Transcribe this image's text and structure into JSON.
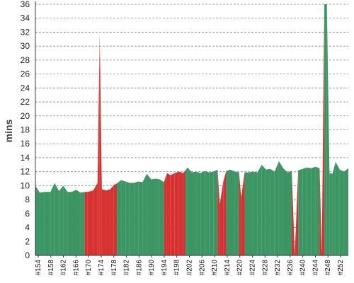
{
  "chart_data": {
    "type": "area",
    "ylabel": "mins",
    "ylim": [
      0,
      36
    ],
    "yticks": [
      0,
      2,
      4,
      6,
      8,
      10,
      12,
      14,
      16,
      18,
      20,
      22,
      24,
      26,
      28,
      30,
      32,
      34,
      36
    ],
    "xticks": [
      "#154",
      "#158",
      "#162",
      "#166",
      "#170",
      "#174",
      "#178",
      "#182",
      "#186",
      "#190",
      "#194",
      "#198",
      "#202",
      "#206",
      "#210",
      "#214",
      "#220",
      "#224",
      "#228",
      "#232",
      "#236",
      "#240",
      "#244",
      "#248",
      "#252"
    ],
    "grid": "horizontal-dashed",
    "colors": {
      "pass": "#3b9664",
      "fail": "#d63232",
      "grid": "#888888",
      "axis": "#333333"
    },
    "points": [
      {
        "x": 154.0,
        "y": 10.0
      },
      {
        "x": 155.0,
        "y": 9.0
      },
      {
        "x": 156.0,
        "y": 9.1
      },
      {
        "x": 157.5,
        "y": 9.1
      },
      {
        "x": 158.5,
        "y": 10.4
      },
      {
        "x": 159.5,
        "y": 9.2
      },
      {
        "x": 160.5,
        "y": 10.0
      },
      {
        "x": 161.5,
        "y": 9.1
      },
      {
        "x": 162.5,
        "y": 9.1
      },
      {
        "x": 163.5,
        "y": 9.4
      },
      {
        "x": 164.5,
        "y": 9.0
      },
      {
        "x": 165.5,
        "y": 9.1
      },
      {
        "x": 166.2,
        "y": 9.1,
        "s": "fail"
      },
      {
        "x": 167.5,
        "y": 9.3,
        "s": "fail"
      },
      {
        "x": 168.5,
        "y": 10.4,
        "s": "fail"
      },
      {
        "x": 169.0,
        "y": 31.8,
        "s": "fail"
      },
      {
        "x": 169.5,
        "y": 9.5,
        "s": "fail"
      },
      {
        "x": 170.5,
        "y": 9.3,
        "s": "fail"
      },
      {
        "x": 171.5,
        "y": 9.5,
        "s": "fail"
      },
      {
        "x": 172.3,
        "y": 10.1,
        "s": "fail"
      },
      {
        "x": 173.0,
        "y": 10.3
      },
      {
        "x": 174.0,
        "y": 10.8
      },
      {
        "x": 175.0,
        "y": 10.6
      },
      {
        "x": 176.0,
        "y": 10.4
      },
      {
        "x": 177.0,
        "y": 10.4
      },
      {
        "x": 178.0,
        "y": 10.6
      },
      {
        "x": 179.0,
        "y": 10.5
      },
      {
        "x": 180.0,
        "y": 11.7
      },
      {
        "x": 181.0,
        "y": 10.9
      },
      {
        "x": 182.0,
        "y": 11.0
      },
      {
        "x": 183.0,
        "y": 10.9
      },
      {
        "x": 184.0,
        "y": 10.5
      },
      {
        "x": 184.7,
        "y": 11.8,
        "s": "fail"
      },
      {
        "x": 185.5,
        "y": 11.5,
        "s": "fail"
      },
      {
        "x": 186.5,
        "y": 11.8,
        "s": "fail"
      },
      {
        "x": 187.5,
        "y": 12.0,
        "s": "fail"
      },
      {
        "x": 188.5,
        "y": 11.8,
        "s": "fail"
      },
      {
        "x": 189.0,
        "y": 12.2
      },
      {
        "x": 189.5,
        "y": 12.6
      },
      {
        "x": 190.5,
        "y": 11.9
      },
      {
        "x": 191.5,
        "y": 12.0
      },
      {
        "x": 192.5,
        "y": 11.8
      },
      {
        "x": 193.5,
        "y": 12.1
      },
      {
        "x": 194.5,
        "y": 11.9
      },
      {
        "x": 195.5,
        "y": 12.0
      },
      {
        "x": 196.5,
        "y": 12.3
      },
      {
        "x": 197.0,
        "y": 7.3,
        "s": "fail"
      },
      {
        "x": 197.8,
        "y": 10.5,
        "s": "fail"
      },
      {
        "x": 198.5,
        "y": 12.1
      },
      {
        "x": 199.5,
        "y": 12.3
      },
      {
        "x": 200.5,
        "y": 12.0
      },
      {
        "x": 201.5,
        "y": 11.9
      },
      {
        "x": 202.0,
        "y": 8.3,
        "s": "fail"
      },
      {
        "x": 202.8,
        "y": 11.9
      },
      {
        "x": 203.8,
        "y": 11.9
      },
      {
        "x": 204.8,
        "y": 12.0
      },
      {
        "x": 205.8,
        "y": 11.9
      },
      {
        "x": 206.8,
        "y": 13.0
      },
      {
        "x": 207.8,
        "y": 12.3
      },
      {
        "x": 208.8,
        "y": 12.4
      },
      {
        "x": 209.8,
        "y": 12.0
      },
      {
        "x": 210.8,
        "y": 13.5
      },
      {
        "x": 211.8,
        "y": 12.5
      },
      {
        "x": 212.8,
        "y": 11.9
      },
      {
        "x": 213.8,
        "y": 12.1
      },
      {
        "x": 214.5,
        "y": 0.0,
        "s": "fail"
      },
      {
        "x": 215.3,
        "y": 12.2
      },
      {
        "x": 216.3,
        "y": 12.4
      },
      {
        "x": 217.3,
        "y": 12.6
      },
      {
        "x": 218.3,
        "y": 12.5
      },
      {
        "x": 219.3,
        "y": 12.7
      },
      {
        "x": 220.3,
        "y": 12.5
      },
      {
        "x": 220.8,
        "y": 0.0,
        "s": "fail"
      },
      {
        "x": 221.4,
        "y": 36.0
      },
      {
        "x": 222.0,
        "y": 36.0
      },
      {
        "x": 222.6,
        "y": 11.8
      },
      {
        "x": 223.3,
        "y": 11.7
      },
      {
        "x": 224.0,
        "y": 13.4
      },
      {
        "x": 225.0,
        "y": 12.3
      },
      {
        "x": 226.0,
        "y": 12.0
      },
      {
        "x": 227.0,
        "y": 12.5
      }
    ]
  }
}
